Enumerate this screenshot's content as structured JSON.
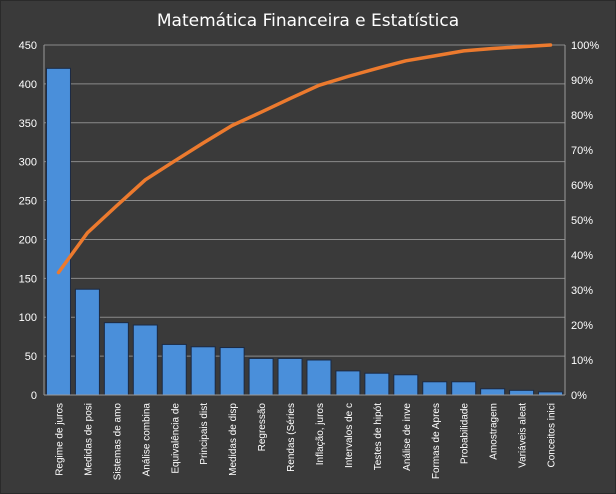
{
  "chart_data": {
    "type": "bar",
    "title": "Matemática  Financeira  e  Estatística",
    "categories": [
      "Regime de juros",
      "Medidas de posi",
      "Sistemas de amo",
      "Análise combina",
      "Equivalência de",
      "Principais dist",
      "Medidas de disp",
      "Regressão",
      "Rendas (Séries",
      "Inflação, juros",
      "Intervalos de c",
      "Testes de hipót",
      "Análise de inve",
      "Formas de Apres",
      "Probabilidade",
      "Amostragem",
      "Variáveis aleat",
      "Conceitos inici"
    ],
    "series": [
      {
        "type": "bar",
        "values": [
          420,
          136,
          93,
          90,
          65,
          62,
          61,
          47,
          47,
          45,
          31,
          28,
          26,
          17,
          17,
          8,
          6,
          4
        ]
      },
      {
        "type": "line",
        "axis": "secondary",
        "values": [
          0.35,
          0.463,
          0.54,
          0.615,
          0.668,
          0.72,
          0.77,
          0.808,
          0.847,
          0.885,
          0.91,
          0.933,
          0.955,
          0.969,
          0.983,
          0.99,
          0.995,
          1.0
        ]
      }
    ],
    "ylim": [
      0,
      450
    ],
    "yticks": [
      0,
      50,
      100,
      150,
      200,
      250,
      300,
      350,
      400,
      450
    ],
    "y2lim": [
      0,
      1
    ],
    "y2ticks": [
      "0%",
      "10%",
      "20%",
      "30%",
      "40%",
      "50%",
      "60%",
      "70%",
      "80%",
      "90%",
      "100%"
    ],
    "grid": true,
    "legend": "none",
    "colors": {
      "background": "#3a3a3a",
      "bar": "#4a8fda",
      "line": "#ec7a2e",
      "grid": "#8a8a8a",
      "text": "#ffffff"
    }
  }
}
